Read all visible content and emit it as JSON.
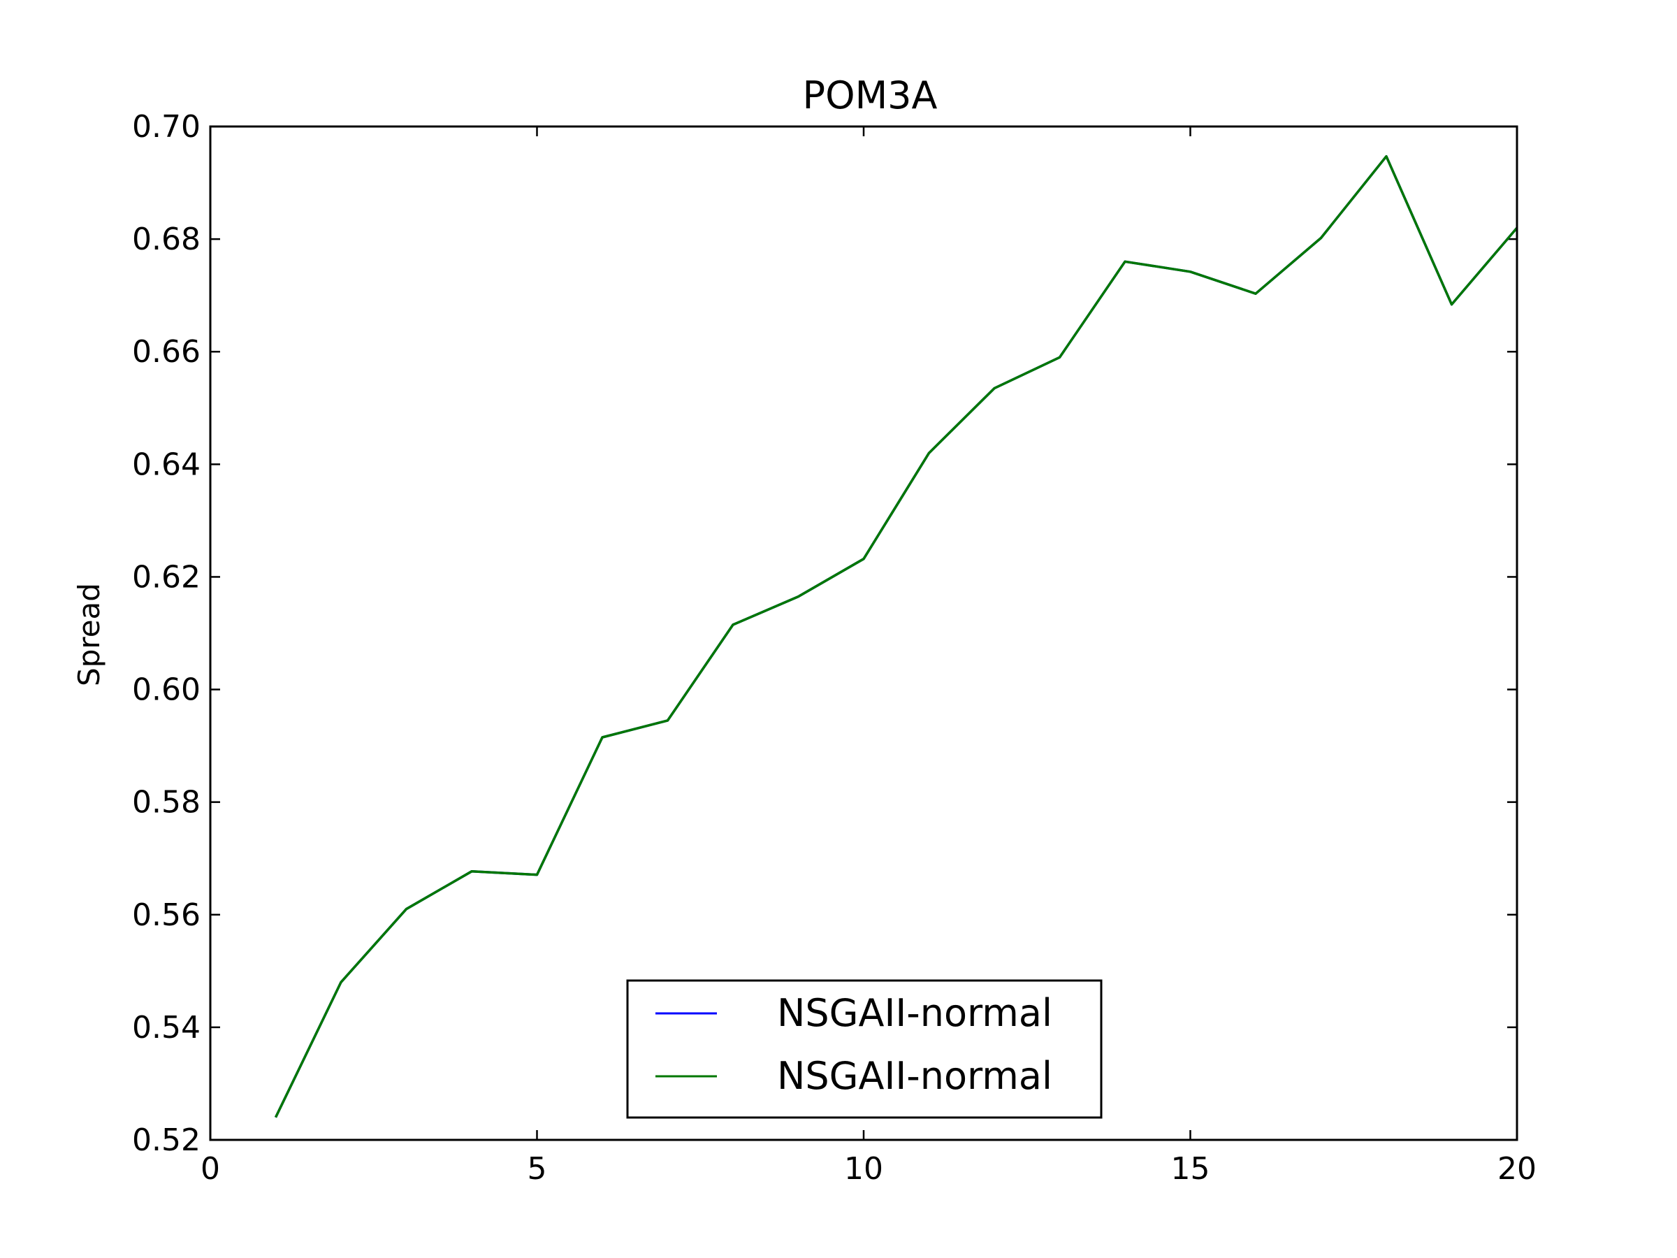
{
  "chart_data": {
    "type": "line",
    "title": "POM3A",
    "xlabel": "",
    "ylabel": "Spread",
    "xlim": [
      0,
      20
    ],
    "ylim": [
      0.52,
      0.7
    ],
    "xticks": [
      0,
      5,
      10,
      15,
      20
    ],
    "xtick_labels": [
      "0",
      "5",
      "10",
      "15",
      "20"
    ],
    "yticks": [
      0.52,
      0.54,
      0.56,
      0.58,
      0.6,
      0.62,
      0.64,
      0.66,
      0.68,
      0.7
    ],
    "ytick_labels": [
      "0.52",
      "0.54",
      "0.56",
      "0.58",
      "0.60",
      "0.62",
      "0.64",
      "0.66",
      "0.68",
      "0.70"
    ],
    "grid": false,
    "legend_position": "lower-center",
    "x": [
      1,
      2,
      3,
      4,
      5,
      6,
      7,
      8,
      9,
      10,
      11,
      12,
      13,
      14,
      15,
      16,
      17,
      18,
      19,
      20
    ],
    "series": [
      {
        "name": "NSGAII-normal",
        "color": "#0000ff",
        "values": [
          0.524,
          0.548,
          0.561,
          0.5677,
          0.5671,
          0.5915,
          0.5945,
          0.6115,
          0.6165,
          0.6232,
          0.642,
          0.6535,
          0.659,
          0.676,
          0.6742,
          0.6703,
          0.6802,
          0.6947,
          0.6684,
          0.682
        ]
      },
      {
        "name": "NSGAII-normal",
        "color": "#007700",
        "values": [
          0.524,
          0.548,
          0.561,
          0.5677,
          0.5671,
          0.5915,
          0.5945,
          0.6115,
          0.6165,
          0.6232,
          0.642,
          0.6535,
          0.659,
          0.676,
          0.6742,
          0.6703,
          0.6802,
          0.6947,
          0.6684,
          0.682
        ]
      }
    ]
  }
}
